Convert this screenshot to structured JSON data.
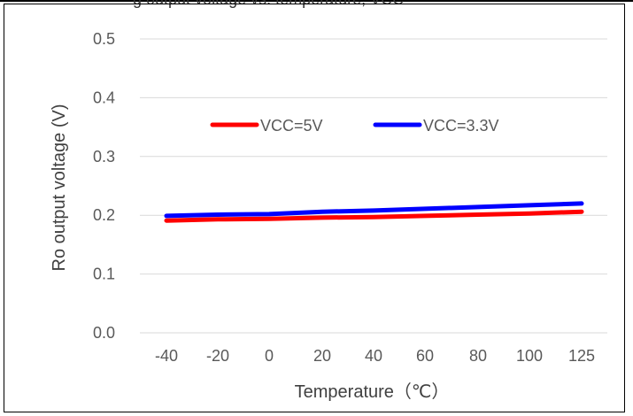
{
  "top_clipped_text": "g output voltage vs. temperature, VCC",
  "chart_data": {
    "type": "line",
    "categories": [
      "-40",
      "-20",
      "0",
      "20",
      "40",
      "60",
      "80",
      "100",
      "125"
    ],
    "series": [
      {
        "name": "VCC=5V",
        "color": "#ff0000",
        "values": [
          0.191,
          0.193,
          0.194,
          0.196,
          0.197,
          0.199,
          0.201,
          0.203,
          0.206
        ]
      },
      {
        "name": "VCC=3.3V",
        "color": "#0000ff",
        "values": [
          0.199,
          0.201,
          0.202,
          0.206,
          0.208,
          0.211,
          0.214,
          0.217,
          0.22
        ]
      }
    ],
    "ylim": [
      0,
      0.5
    ],
    "yticks": [
      "0.0",
      "0.1",
      "0.2",
      "0.3",
      "0.4",
      "0.5"
    ],
    "ylabel": "Ro output voltage (V)",
    "xlabel": "Temperature（℃）",
    "grid": true,
    "legend_position": "upper-middle"
  }
}
